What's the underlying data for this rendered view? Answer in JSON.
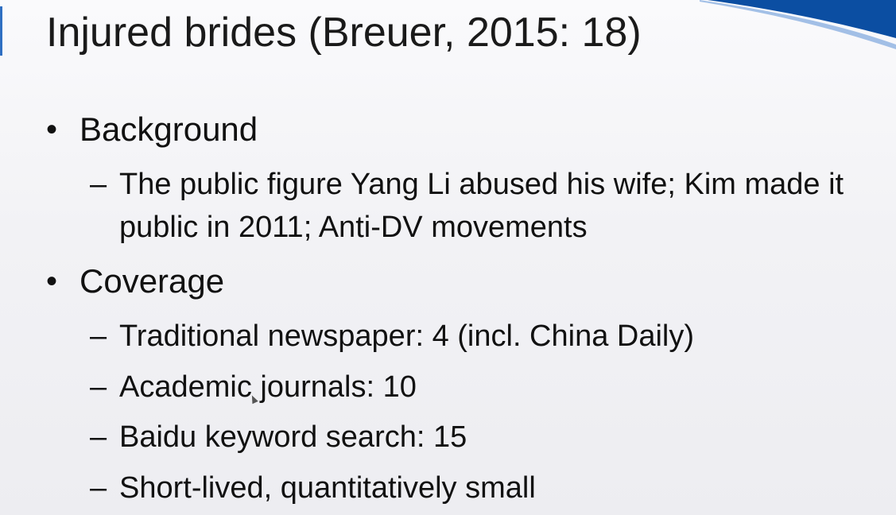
{
  "slide": {
    "title": "Injured brides (Breuer, 2015: 18)",
    "bullets": [
      {
        "label": "Background",
        "subitems": [
          "The public figure Yang Li  abused his wife; Kim made it public in 2011; Anti-DV movements"
        ]
      },
      {
        "label": "Coverage",
        "subitems": [
          "Traditional newspaper: 4 (incl. China Daily)",
          "Academic journals: 10",
          "Baidu keyword search: 15",
          "Short-lived, quantitatively small"
        ]
      }
    ],
    "bullet_glyph": "•",
    "dash_glyph": "–",
    "accent_color": "#0b4ea2"
  }
}
